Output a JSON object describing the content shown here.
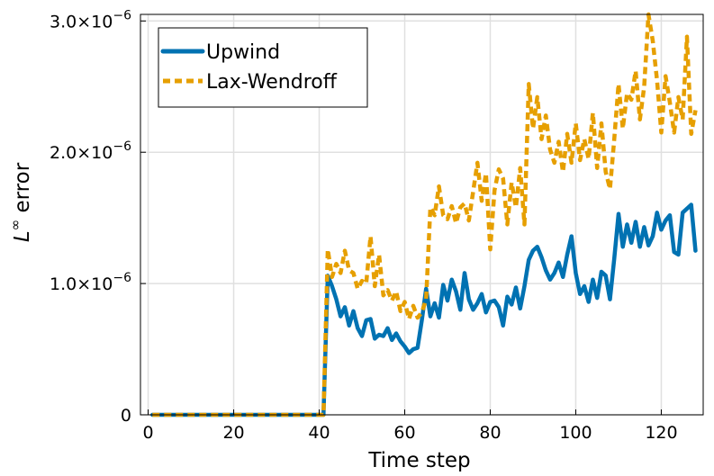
{
  "chart_data": {
    "type": "line",
    "title": "",
    "xlabel": "Time step",
    "ylabel_base": "L",
    "ylabel_sup": "∞",
    "ylabel_rest": " error",
    "xlim": [
      -1.8,
      129.8
    ],
    "ylim": [
      0,
      3.05e-06
    ],
    "xticks": [
      0,
      20,
      40,
      60,
      80,
      100,
      120
    ],
    "yticks": [
      0,
      1e-06,
      2e-06,
      3e-06
    ],
    "ytick_labels": [
      {
        "mantissa": "0",
        "exponent": ""
      },
      {
        "mantissa": "1.0×10",
        "exponent": "−6"
      },
      {
        "mantissa": "2.0×10",
        "exponent": "−6"
      },
      {
        "mantissa": "3.0×10",
        "exponent": "−6"
      }
    ],
    "grid": true,
    "legend_position": "top-left",
    "x": [
      1,
      2,
      3,
      4,
      5,
      6,
      7,
      8,
      9,
      10,
      11,
      12,
      13,
      14,
      15,
      16,
      17,
      18,
      19,
      20,
      21,
      22,
      23,
      24,
      25,
      26,
      27,
      28,
      29,
      30,
      31,
      32,
      33,
      34,
      35,
      36,
      37,
      38,
      39,
      40,
      41,
      42,
      43,
      44,
      45,
      46,
      47,
      48,
      49,
      50,
      51,
      52,
      53,
      54,
      55,
      56,
      57,
      58,
      59,
      60,
      61,
      62,
      63,
      64,
      65,
      66,
      67,
      68,
      69,
      70,
      71,
      72,
      73,
      74,
      75,
      76,
      77,
      78,
      79,
      80,
      81,
      82,
      83,
      84,
      85,
      86,
      87,
      88,
      89,
      90,
      91,
      92,
      93,
      94,
      95,
      96,
      97,
      98,
      99,
      100,
      101,
      102,
      103,
      104,
      105,
      106,
      107,
      108,
      109,
      110,
      111,
      112,
      113,
      114,
      115,
      116,
      117,
      118,
      119,
      120,
      121,
      122,
      123,
      124,
      125,
      126,
      127,
      128
    ],
    "series": [
      {
        "name": "Upwind",
        "color": "#0072b2",
        "dash": "solid",
        "values": [
          0,
          0,
          0,
          0,
          0,
          0,
          0,
          0,
          0,
          0,
          0,
          0,
          0,
          0,
          0,
          0,
          0,
          0,
          0,
          0,
          0,
          0,
          0,
          0,
          0,
          0,
          0,
          0,
          0,
          0,
          0,
          0,
          0,
          0,
          0,
          0,
          0,
          0,
          0,
          0,
          0,
          1.06e-06,
          9.8e-07,
          8.8e-07,
          7.5e-07,
          8.2e-07,
          6.8e-07,
          7.9e-07,
          6.6e-07,
          6e-07,
          7.2e-07,
          7.3e-07,
          5.8e-07,
          6.1e-07,
          6e-07,
          6.6e-07,
          5.7e-07,
          6.2e-07,
          5.6e-07,
          5.2e-07,
          4.7e-07,
          5e-07,
          5.1e-07,
          7.2e-07,
          9.6e-07,
          7.5e-07,
          8.5e-07,
          7.4e-07,
          9.9e-07,
          8.7e-07,
          1.03e-06,
          9.4e-07,
          8e-07,
          1.08e-06,
          8.8e-07,
          8e-07,
          8.5e-07,
          9.2e-07,
          7.8e-07,
          8.6e-07,
          8.7e-07,
          8.2e-07,
          6.8e-07,
          9e-07,
          8.4e-07,
          9.7e-07,
          8.1e-07,
          9.8e-07,
          1.18e-06,
          1.25e-06,
          1.28e-06,
          1.2e-06,
          1.1e-06,
          1.03e-06,
          1.08e-06,
          1.16e-06,
          1.05e-06,
          1.22e-06,
          1.36e-06,
          1.08e-06,
          9.2e-07,
          9.8e-07,
          8.6e-07,
          1.03e-06,
          8.9e-07,
          1.09e-06,
          1.06e-06,
          8.8e-07,
          1.19e-06,
          1.53e-06,
          1.28e-06,
          1.45e-06,
          1.31e-06,
          1.47e-06,
          1.28e-06,
          1.43e-06,
          1.29e-06,
          1.36e-06,
          1.54e-06,
          1.41e-06,
          1.48e-06,
          1.52e-06,
          1.24e-06,
          1.22e-06,
          1.54e-06,
          1.57e-06,
          1.6e-06,
          1.25e-06
        ]
      },
      {
        "name": "Lax-Wendroff",
        "color": "#e69f00",
        "dash": "dashed",
        "values": [
          0,
          0,
          0,
          0,
          0,
          0,
          0,
          0,
          0,
          0,
          0,
          0,
          0,
          0,
          0,
          0,
          0,
          0,
          0,
          0,
          0,
          0,
          0,
          0,
          0,
          0,
          0,
          0,
          0,
          0,
          0,
          0,
          0,
          0,
          0,
          0,
          0,
          0,
          0,
          0,
          0,
          1.26e-06,
          1.05e-06,
          1.15e-06,
          1.08e-06,
          1.25e-06,
          1.1e-06,
          1.08e-06,
          9.6e-07,
          1.02e-06,
          1e-06,
          1.36e-06,
          9.8e-07,
          1.22e-06,
          9.1e-07,
          9.5e-07,
          8.7e-07,
          9.4e-07,
          7.9e-07,
          8.6e-07,
          7.3e-07,
          8.3e-07,
          7.4e-07,
          7.8e-07,
          8.8e-07,
          1.58e-06,
          1.52e-06,
          1.74e-06,
          1.52e-06,
          1.49e-06,
          1.59e-06,
          1.46e-06,
          1.58e-06,
          1.61e-06,
          1.48e-06,
          1.7e-06,
          1.92e-06,
          1.63e-06,
          1.84e-06,
          1.26e-06,
          1.71e-06,
          1.87e-06,
          1.8e-06,
          1.45e-06,
          1.77e-06,
          1.58e-06,
          1.88e-06,
          1.45e-06,
          2.52e-06,
          2.18e-06,
          2.42e-06,
          2.1e-06,
          2.28e-06,
          2.02e-06,
          1.92e-06,
          2.08e-06,
          1.85e-06,
          2.14e-06,
          1.92e-06,
          2.22e-06,
          1.94e-06,
          2.1e-06,
          1.95e-06,
          2.3e-06,
          1.88e-06,
          2.22e-06,
          1.85e-06,
          1.72e-06,
          2.1e-06,
          2.52e-06,
          2.18e-06,
          2.45e-06,
          2.4e-06,
          2.62e-06,
          2.25e-06,
          2.5e-06,
          3.05e-06,
          2.85e-06,
          2.55e-06,
          2.15e-06,
          2.58e-06,
          2.38e-06,
          2.15e-06,
          2.42e-06,
          2.25e-06,
          2.88e-06,
          2.14e-06,
          2.32e-06
        ]
      }
    ]
  }
}
